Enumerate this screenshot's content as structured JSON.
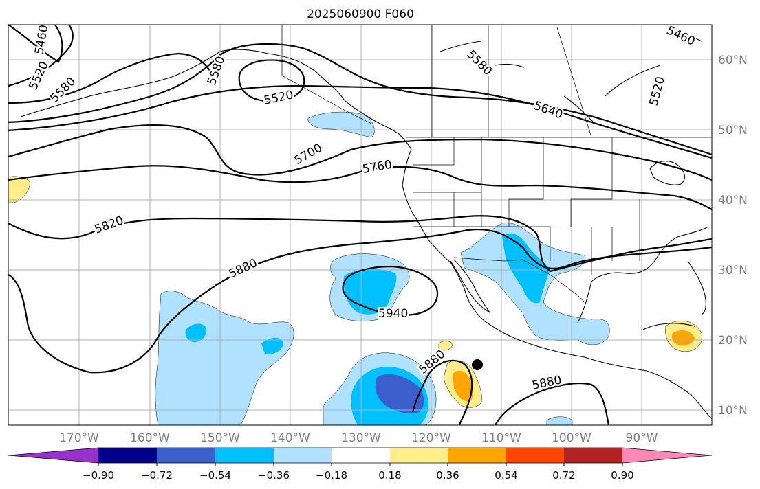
{
  "title": "2025060900 F060",
  "lat_labels": [
    "60°N",
    "50°N",
    "40°N",
    "30°N",
    "20°N",
    "10°N"
  ],
  "lon_labels": [
    "170°W",
    "160°W",
    "150°W",
    "140°W",
    "130°W",
    "120°W",
    "110°W",
    "100°W",
    "90°W"
  ],
  "colorbar": {
    "ticks": [
      "−0.90",
      "−0.72",
      "−0.54",
      "−0.36",
      "−0.18",
      "0.18",
      "0.36",
      "0.54",
      "0.72",
      "0.90"
    ],
    "colors": [
      "#9932cc",
      "#00008b",
      "#3a5fcd",
      "#00bfff",
      "#b0e2ff",
      "#ffffff",
      "#ffec8b",
      "#ffa500",
      "#ff4500",
      "#b22222",
      "#ff89b4"
    ]
  },
  "contour_labels": [
    "5460",
    "5520",
    "5580",
    "5580",
    "5520",
    "5580",
    "5640",
    "5460",
    "5520",
    "5700",
    "5760",
    "5820",
    "5880",
    "5940",
    "5880",
    "5880"
  ],
  "colors": {
    "contour": "#000000",
    "axis_label": "#808080",
    "grid": "#b0b0b0"
  }
}
